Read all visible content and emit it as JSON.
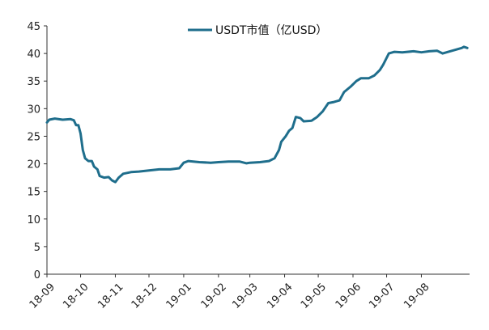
{
  "chart_data": {
    "type": "line",
    "series": [
      {
        "name": "USDT市值（亿USD）",
        "color": "#1f6e8c",
        "points": [
          [
            "2018-09-01",
            27.5
          ],
          [
            "2018-09-03",
            28.0
          ],
          [
            "2018-09-08",
            28.2
          ],
          [
            "2018-09-15",
            28.0
          ],
          [
            "2018-09-22",
            28.1
          ],
          [
            "2018-09-25",
            27.9
          ],
          [
            "2018-09-27",
            27.0
          ],
          [
            "2018-09-29",
            27.0
          ],
          [
            "2018-10-01",
            25.5
          ],
          [
            "2018-10-03",
            22.5
          ],
          [
            "2018-10-05",
            21.0
          ],
          [
            "2018-10-08",
            20.5
          ],
          [
            "2018-10-11",
            20.5
          ],
          [
            "2018-10-13",
            19.5
          ],
          [
            "2018-10-16",
            19.0
          ],
          [
            "2018-10-18",
            17.8
          ],
          [
            "2018-10-22",
            17.5
          ],
          [
            "2018-10-26",
            17.6
          ],
          [
            "2018-10-29",
            17.0
          ],
          [
            "2018-11-01",
            16.7
          ],
          [
            "2018-11-04",
            17.5
          ],
          [
            "2018-11-08",
            18.2
          ],
          [
            "2018-11-15",
            18.5
          ],
          [
            "2018-11-22",
            18.6
          ],
          [
            "2018-12-01",
            18.8
          ],
          [
            "2018-12-10",
            19.0
          ],
          [
            "2018-12-20",
            19.0
          ],
          [
            "2018-12-28",
            19.2
          ],
          [
            "2019-01-01",
            20.2
          ],
          [
            "2019-01-05",
            20.5
          ],
          [
            "2019-01-15",
            20.3
          ],
          [
            "2019-01-25",
            20.2
          ],
          [
            "2019-02-01",
            20.3
          ],
          [
            "2019-02-10",
            20.4
          ],
          [
            "2019-02-20",
            20.4
          ],
          [
            "2019-02-26",
            20.1
          ],
          [
            "2019-03-01",
            20.2
          ],
          [
            "2019-03-10",
            20.3
          ],
          [
            "2019-03-18",
            20.5
          ],
          [
            "2019-03-23",
            21.0
          ],
          [
            "2019-03-27",
            22.5
          ],
          [
            "2019-03-29",
            24.0
          ],
          [
            "2019-04-02",
            25.0
          ],
          [
            "2019-04-05",
            26.0
          ],
          [
            "2019-04-08",
            26.5
          ],
          [
            "2019-04-11",
            28.5
          ],
          [
            "2019-04-15",
            28.3
          ],
          [
            "2019-04-18",
            27.7
          ],
          [
            "2019-04-25",
            27.8
          ],
          [
            "2019-04-30",
            28.5
          ],
          [
            "2019-05-05",
            29.5
          ],
          [
            "2019-05-10",
            31.0
          ],
          [
            "2019-05-15",
            31.2
          ],
          [
            "2019-05-20",
            31.5
          ],
          [
            "2019-05-24",
            33.0
          ],
          [
            "2019-05-30",
            34.0
          ],
          [
            "2019-06-04",
            35.0
          ],
          [
            "2019-06-08",
            35.5
          ],
          [
            "2019-06-15",
            35.5
          ],
          [
            "2019-06-20",
            36.0
          ],
          [
            "2019-06-25",
            37.0
          ],
          [
            "2019-06-28",
            38.0
          ],
          [
            "2019-07-03",
            40.0
          ],
          [
            "2019-07-08",
            40.3
          ],
          [
            "2019-07-15",
            40.2
          ],
          [
            "2019-07-25",
            40.4
          ],
          [
            "2019-08-01",
            40.2
          ],
          [
            "2019-08-08",
            40.4
          ],
          [
            "2019-08-15",
            40.5
          ],
          [
            "2019-08-20",
            40.0
          ],
          [
            "2019-08-25",
            40.3
          ],
          [
            "2019-09-01",
            40.7
          ],
          [
            "2019-09-06",
            41.0
          ],
          [
            "2019-09-08",
            41.2
          ],
          [
            "2019-09-11",
            41.0
          ]
        ]
      }
    ],
    "xaxis": {
      "ticks": [
        "2018-09-01",
        "2018-10-01",
        "2018-11-01",
        "2018-12-01",
        "2019-01-01",
        "2019-02-01",
        "2019-03-01",
        "2019-04-01",
        "2019-05-01",
        "2019-06-01",
        "2019-07-01",
        "2019-08-01"
      ],
      "tick_labels": [
        "18-09",
        "18-10",
        "18-11",
        "18-12",
        "19-01",
        "19-02",
        "19-03",
        "19-04",
        "19-05",
        "19-06",
        "19-07",
        "19-08"
      ],
      "range": [
        "2018-09-01",
        "2019-09-13"
      ]
    },
    "yaxis": {
      "ticks": [
        0,
        5,
        10,
        15,
        20,
        25,
        30,
        35,
        40,
        45
      ],
      "range": [
        0,
        45
      ]
    },
    "grid": false,
    "legend_position": "top-center"
  }
}
